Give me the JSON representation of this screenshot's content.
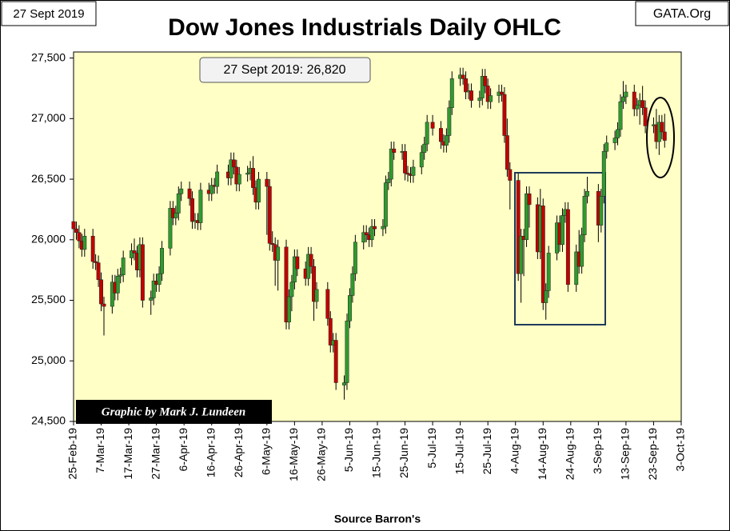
{
  "chart_data": {
    "type": "candlestick",
    "title": "Dow Jones Industrials Daily OHLC",
    "date_label": "27 Sept 2019",
    "site": "GATA.Org",
    "annotation": "27 Sept 2019: 26,820",
    "credit": "Graphic by Mark J. Lundeen",
    "x_label": "Source Barron's",
    "up_color": "#2f9a2f",
    "down_color": "#c00000",
    "xlim": [
      "2019-02-25",
      "2019-10-03"
    ],
    "xticks": [
      {
        "value": "2019-02-25",
        "label": "25-Feb-19"
      },
      {
        "value": "2019-03-07",
        "label": "7-Mar-19"
      },
      {
        "value": "2019-03-17",
        "label": "17-Mar-19"
      },
      {
        "value": "2019-03-27",
        "label": "27-Mar-19"
      },
      {
        "value": "2019-04-06",
        "label": "6-Apr-19"
      },
      {
        "value": "2019-04-16",
        "label": "16-Apr-19"
      },
      {
        "value": "2019-04-26",
        "label": "26-Apr-19"
      },
      {
        "value": "2019-05-06",
        "label": "6-May-19"
      },
      {
        "value": "2019-05-16",
        "label": "16-May-19"
      },
      {
        "value": "2019-05-26",
        "label": "26-May-19"
      },
      {
        "value": "2019-06-05",
        "label": "5-Jun-19"
      },
      {
        "value": "2019-06-15",
        "label": "15-Jun-19"
      },
      {
        "value": "2019-06-25",
        "label": "25-Jun-19"
      },
      {
        "value": "2019-07-05",
        "label": "5-Jul-19"
      },
      {
        "value": "2019-07-15",
        "label": "15-Jul-19"
      },
      {
        "value": "2019-07-25",
        "label": "25-Jul-19"
      },
      {
        "value": "2019-08-04",
        "label": "4-Aug-19"
      },
      {
        "value": "2019-08-14",
        "label": "14-Aug-19"
      },
      {
        "value": "2019-08-24",
        "label": "24-Aug-19"
      },
      {
        "value": "2019-09-03",
        "label": "3-Sep-19"
      },
      {
        "value": "2019-09-13",
        "label": "13-Sep-19"
      },
      {
        "value": "2019-09-23",
        "label": "23-Sep-19"
      },
      {
        "value": "2019-10-03",
        "label": "3-Oct-19"
      }
    ],
    "ylim": [
      24500,
      27550
    ],
    "yticks": [
      {
        "value": 24500,
        "label": "24,500"
      },
      {
        "value": 25000,
        "label": "25,000"
      },
      {
        "value": 25500,
        "label": "25,500"
      },
      {
        "value": 26000,
        "label": "26,000"
      },
      {
        "value": 26500,
        "label": "26,500"
      },
      {
        "value": 27000,
        "label": "27,000"
      },
      {
        "value": 27500,
        "label": "27,500"
      }
    ],
    "x": [
      "2019-02-25",
      "2019-02-26",
      "2019-02-27",
      "2019-02-28",
      "2019-03-01",
      "2019-03-04",
      "2019-03-05",
      "2019-03-06",
      "2019-03-07",
      "2019-03-08",
      "2019-03-11",
      "2019-03-12",
      "2019-03-13",
      "2019-03-14",
      "2019-03-15",
      "2019-03-18",
      "2019-03-19",
      "2019-03-20",
      "2019-03-21",
      "2019-03-22",
      "2019-03-25",
      "2019-03-26",
      "2019-03-27",
      "2019-03-28",
      "2019-03-29",
      "2019-04-01",
      "2019-04-02",
      "2019-04-03",
      "2019-04-04",
      "2019-04-05",
      "2019-04-08",
      "2019-04-09",
      "2019-04-10",
      "2019-04-11",
      "2019-04-12",
      "2019-04-15",
      "2019-04-16",
      "2019-04-17",
      "2019-04-18",
      "2019-04-22",
      "2019-04-23",
      "2019-04-24",
      "2019-04-25",
      "2019-04-26",
      "2019-04-29",
      "2019-04-30",
      "2019-05-01",
      "2019-05-02",
      "2019-05-03",
      "2019-05-06",
      "2019-05-07",
      "2019-05-08",
      "2019-05-09",
      "2019-05-10",
      "2019-05-13",
      "2019-05-14",
      "2019-05-15",
      "2019-05-16",
      "2019-05-17",
      "2019-05-20",
      "2019-05-21",
      "2019-05-22",
      "2019-05-23",
      "2019-05-24",
      "2019-05-28",
      "2019-05-29",
      "2019-05-30",
      "2019-05-31",
      "2019-06-03",
      "2019-06-04",
      "2019-06-05",
      "2019-06-06",
      "2019-06-07",
      "2019-06-10",
      "2019-06-11",
      "2019-06-12",
      "2019-06-13",
      "2019-06-14",
      "2019-06-17",
      "2019-06-18",
      "2019-06-19",
      "2019-06-20",
      "2019-06-21",
      "2019-06-24",
      "2019-06-25",
      "2019-06-26",
      "2019-06-27",
      "2019-06-28",
      "2019-07-01",
      "2019-07-02",
      "2019-07-03",
      "2019-07-05",
      "2019-07-08",
      "2019-07-09",
      "2019-07-10",
      "2019-07-11",
      "2019-07-12",
      "2019-07-15",
      "2019-07-16",
      "2019-07-17",
      "2019-07-18",
      "2019-07-19",
      "2019-07-22",
      "2019-07-23",
      "2019-07-24",
      "2019-07-25",
      "2019-07-26",
      "2019-07-29",
      "2019-07-30",
      "2019-07-31",
      "2019-08-01",
      "2019-08-02",
      "2019-08-05",
      "2019-08-06",
      "2019-08-07",
      "2019-08-08",
      "2019-08-09",
      "2019-08-12",
      "2019-08-13",
      "2019-08-14",
      "2019-08-15",
      "2019-08-16",
      "2019-08-19",
      "2019-08-20",
      "2019-08-21",
      "2019-08-22",
      "2019-08-23",
      "2019-08-26",
      "2019-08-27",
      "2019-08-28",
      "2019-08-29",
      "2019-08-30",
      "2019-09-03",
      "2019-09-04",
      "2019-09-05",
      "2019-09-06",
      "2019-09-09",
      "2019-09-10",
      "2019-09-11",
      "2019-09-12",
      "2019-09-13",
      "2019-09-16",
      "2019-09-17",
      "2019-09-18",
      "2019-09-19",
      "2019-09-20",
      "2019-09-23",
      "2019-09-24",
      "2019-09-25",
      "2019-09-26",
      "2019-09-27"
    ],
    "open": [
      26150,
      26090,
      26060,
      25990,
      25920,
      26030,
      25820,
      25810,
      25670,
      25470,
      25450,
      25650,
      25560,
      25700,
      25710,
      25850,
      25910,
      25890,
      25750,
      25960,
      25500,
      25520,
      25660,
      25630,
      25720,
      25930,
      26260,
      26180,
      26220,
      26380,
      26420,
      26340,
      26150,
      26160,
      26140,
      26410,
      26380,
      26450,
      26440,
      26560,
      26510,
      26660,
      26600,
      26460,
      26540,
      26550,
      26590,
      26430,
      26310,
      26500,
      26440,
      25970,
      25960,
      25830,
      25940,
      25320,
      25530,
      25650,
      25860,
      25760,
      25680,
      25880,
      25780,
      25490,
      25590,
      25350,
      25130,
      25170,
      24800,
      24820,
      25330,
      25540,
      25720,
      25980,
      26060,
      26040,
      26000,
      26110,
      26090,
      26110,
      26470,
      26500,
      26750,
      26720,
      26730,
      26550,
      26540,
      26530,
      26600,
      26720,
      26790,
      26970,
      26920,
      26810,
      26780,
      26860,
      27090,
      27330,
      27360,
      27330,
      27220,
      27230,
      27150,
      27170,
      27350,
      27270,
      27140,
      27190,
      27220,
      27200,
      26860,
      26580,
      26490,
      25720,
      26030,
      26000,
      26380,
      26290,
      25900,
      26280,
      25480,
      25580,
      25890,
      26140,
      25960,
      26200,
      26250,
      25630,
      25900,
      25780,
      26040,
      26360,
      26400,
      26120,
      26360,
      26730,
      26800,
      26840,
      26910,
      27140,
      27180,
      27220,
      27080,
      27110,
      27150,
      27090,
      26940,
      26950,
      26810,
      26970,
      26890
    ],
    "high": [
      26210,
      26150,
      26120,
      26050,
      26090,
      26090,
      25880,
      25870,
      25730,
      25530,
      25710,
      25710,
      25760,
      25770,
      25910,
      25970,
      26010,
      25950,
      26020,
      26020,
      25580,
      25720,
      25720,
      25780,
      25990,
      26320,
      26320,
      26280,
      26440,
      26480,
      26480,
      26400,
      26220,
      26220,
      26470,
      26470,
      26510,
      26510,
      26620,
      26620,
      26720,
      26720,
      26660,
      26600,
      26610,
      26650,
      26690,
      26490,
      26560,
      26560,
      26500,
      26070,
      26020,
      26000,
      26000,
      25590,
      25710,
      25920,
      25920,
      25820,
      25940,
      25940,
      25840,
      25650,
      25650,
      25410,
      25230,
      25230,
      24880,
      25390,
      25600,
      25780,
      26040,
      26120,
      26120,
      26100,
      26170,
      26170,
      26170,
      26530,
      26560,
      26810,
      26810,
      26790,
      26790,
      26610,
      26600,
      26660,
      26780,
      26850,
      27030,
      27030,
      26980,
      26870,
      26920,
      27150,
      27390,
      27420,
      27420,
      27390,
      27290,
      27290,
      27230,
      27410,
      27410,
      27330,
      27250,
      27280,
      27280,
      27260,
      27000,
      26640,
      26550,
      26090,
      26090,
      26440,
      26440,
      26350,
      26420,
      26340,
      25640,
      25950,
      26200,
      26200,
      26260,
      26310,
      26310,
      25960,
      26080,
      26100,
      26420,
      26520,
      26460,
      26420,
      26790,
      26860,
      26900,
      26970,
      27200,
      27310,
      27280,
      27280,
      27170,
      27210,
      27270,
      27150,
      27010,
      27080,
      27030,
      27030,
      27040
    ],
    "low": [
      26030,
      26000,
      25930,
      25860,
      25860,
      25760,
      25750,
      25610,
      25410,
      25210,
      25390,
      25500,
      25500,
      25640,
      25650,
      25790,
      25830,
      25690,
      25690,
      25440,
      25380,
      25460,
      25570,
      25570,
      25660,
      25870,
      26120,
      26120,
      26160,
      26320,
      26280,
      26090,
      26090,
      26080,
      26080,
      26320,
      26320,
      26380,
      26380,
      26450,
      26450,
      26540,
      26400,
      26400,
      26480,
      26490,
      26370,
      26250,
      26250,
      26040,
      25910,
      25900,
      25620,
      25580,
      25260,
      25260,
      25410,
      25590,
      25700,
      25620,
      25620,
      25720,
      25330,
      25430,
      25290,
      25070,
      25070,
      24760,
      24680,
      24760,
      25270,
      25480,
      25660,
      25920,
      25980,
      25940,
      25940,
      26030,
      26030,
      26050,
      26410,
      26440,
      26660,
      26660,
      26490,
      26480,
      26470,
      26470,
      26540,
      26660,
      26730,
      26860,
      26750,
      26720,
      26720,
      26800,
      27030,
      27270,
      27280,
      27160,
      27160,
      27090,
      27090,
      27110,
      27210,
      27080,
      27080,
      27130,
      27140,
      26800,
      26520,
      26250,
      25660,
      25480,
      25700,
      25940,
      26100,
      25840,
      25840,
      25420,
      25340,
      25520,
      25830,
      25900,
      25900,
      26140,
      25570,
      25570,
      25720,
      25720,
      25980,
      26300,
      25980,
      26060,
      26300,
      26670,
      26740,
      26780,
      26850,
      27080,
      27120,
      27020,
      27020,
      26950,
      27030,
      26880,
      26880,
      26750,
      26700,
      26830,
      26760
    ],
    "close": [
      26090,
      26060,
      25990,
      25920,
      26030,
      25820,
      25810,
      25670,
      25470,
      25450,
      25650,
      25560,
      25700,
      25710,
      25850,
      25910,
      25890,
      25750,
      25960,
      25500,
      25520,
      25660,
      25630,
      25720,
      25930,
      26260,
      26180,
      26220,
      26380,
      26420,
      26340,
      26150,
      26160,
      26140,
      26410,
      26380,
      26450,
      26440,
      26560,
      26510,
      26660,
      26600,
      26460,
      26540,
      26550,
      26590,
      26430,
      26310,
      26500,
      26440,
      25970,
      25960,
      25830,
      25940,
      25320,
      25530,
      25650,
      25860,
      25760,
      25680,
      25880,
      25780,
      25490,
      25590,
      25350,
      25130,
      25170,
      24820,
      24820,
      25330,
      25540,
      25720,
      25980,
      26060,
      26040,
      26000,
      26110,
      26090,
      26110,
      26470,
      26500,
      26750,
      26720,
      26730,
      26550,
      26540,
      26530,
      26600,
      26720,
      26790,
      26970,
      26920,
      26810,
      26780,
      26860,
      27090,
      27330,
      27360,
      27330,
      27220,
      27230,
      27150,
      27170,
      27350,
      27270,
      27140,
      27190,
      27220,
      27200,
      26860,
      26580,
      26490,
      25720,
      26030,
      26000,
      26380,
      26290,
      25900,
      26280,
      25480,
      25580,
      25890,
      26140,
      25960,
      26200,
      26250,
      25630,
      25900,
      25780,
      26040,
      26360,
      26400,
      26120,
      26360,
      26730,
      26800,
      26840,
      26910,
      27140,
      27180,
      27220,
      27080,
      27110,
      27150,
      27090,
      26940,
      26950,
      26810,
      26970,
      26890,
      26820
    ]
  }
}
